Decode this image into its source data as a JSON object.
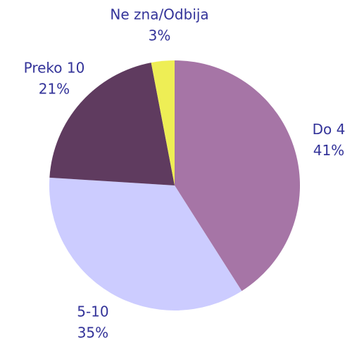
{
  "chart_data": {
    "type": "pie",
    "categories": [
      "Do 4",
      "5-10",
      "Preko 10",
      "Ne zna/Odbija"
    ],
    "values": [
      41,
      35,
      21,
      3
    ],
    "value_labels": [
      "41%",
      "35%",
      "21%",
      "3%"
    ],
    "colors": [
      "#a675a6",
      "#ccccff",
      "#5f3b5f",
      "#eeee55"
    ]
  }
}
